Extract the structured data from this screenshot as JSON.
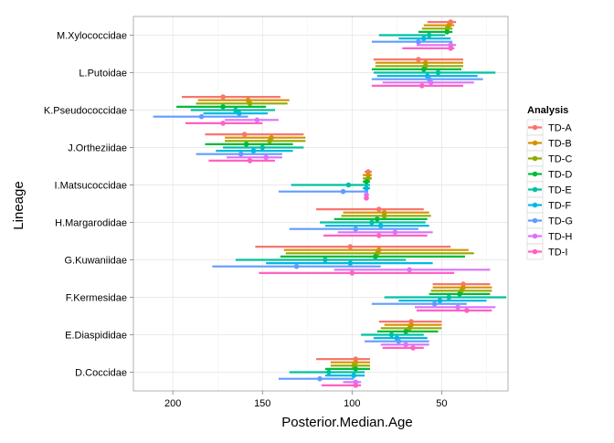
{
  "chart_data": {
    "type": "errorbar",
    "xlabel": "Posterior.Median.Age",
    "ylabel": "Lineage",
    "x_reversed": true,
    "xlim": [
      222,
      13
    ],
    "x_ticks": [
      200,
      150,
      100,
      50
    ],
    "grid": true,
    "legend": {
      "title": "Analysis",
      "position": "right"
    },
    "categories": [
      "D.Coccidae",
      "E.Diaspididae",
      "F.Kermesidae",
      "G.Kuwaniidae",
      "H.Margarodidae",
      "I.Matsucoccidae",
      "J.Ortheziidae",
      "K.Pseudococcidae",
      "L.Putoidae",
      "M.Xylococcidae"
    ],
    "series": [
      {
        "name": "TD-A",
        "color": "#F8766D",
        "points": [
          {
            "category": "D.Coccidae",
            "median": 98,
            "low": 90,
            "high": 120
          },
          {
            "category": "E.Diaspididae",
            "median": 67,
            "low": 50,
            "high": 85
          },
          {
            "category": "F.Kermesidae",
            "median": 38,
            "low": 23,
            "high": 55
          },
          {
            "category": "G.Kuwaniidae",
            "median": 101,
            "low": 45,
            "high": 154
          },
          {
            "category": "H.Margarodidae",
            "median": 85,
            "low": 60,
            "high": 120
          },
          {
            "category": "I.Matsucoccidae",
            "median": 91,
            "low": 89,
            "high": 93
          },
          {
            "category": "J.Ortheziidae",
            "median": 160,
            "low": 127,
            "high": 182
          },
          {
            "category": "K.Pseudococcidae",
            "median": 172,
            "low": 140,
            "high": 195
          },
          {
            "category": "L.Putoidae",
            "median": 63,
            "low": 38,
            "high": 88
          },
          {
            "category": "M.Xylococcidae",
            "median": 45,
            "low": 42,
            "high": 58
          }
        ]
      },
      {
        "name": "TD-B",
        "color": "#D39200",
        "points": [
          {
            "category": "D.Coccidae",
            "median": 98,
            "low": 90,
            "high": 112
          },
          {
            "category": "E.Diaspididae",
            "median": 67,
            "low": 50,
            "high": 82
          },
          {
            "category": "F.Kermesidae",
            "median": 38,
            "low": 22,
            "high": 55
          },
          {
            "category": "G.Kuwaniidae",
            "median": 85,
            "low": 35,
            "high": 138
          },
          {
            "category": "H.Margarodidae",
            "median": 82,
            "low": 57,
            "high": 105
          },
          {
            "category": "I.Matsucoccidae",
            "median": 91,
            "low": 89,
            "high": 94
          },
          {
            "category": "J.Ortheziidae",
            "median": 145,
            "low": 126,
            "high": 171
          },
          {
            "category": "K.Pseudococcidae",
            "median": 158,
            "low": 135,
            "high": 186
          },
          {
            "category": "L.Putoidae",
            "median": 59,
            "low": 38,
            "high": 87
          },
          {
            "category": "M.Xylococcidae",
            "median": 46,
            "low": 43,
            "high": 60
          }
        ]
      },
      {
        "name": "TD-C",
        "color": "#93AA00",
        "points": [
          {
            "category": "D.Coccidae",
            "median": 99,
            "low": 90,
            "high": 112
          },
          {
            "category": "E.Diaspididae",
            "median": 68,
            "low": 50,
            "high": 84
          },
          {
            "category": "F.Kermesidae",
            "median": 39,
            "low": 22,
            "high": 56
          },
          {
            "category": "G.Kuwaniidae",
            "median": 86,
            "low": 32,
            "high": 137
          },
          {
            "category": "H.Margarodidae",
            "median": 82,
            "low": 56,
            "high": 106
          },
          {
            "category": "I.Matsucoccidae",
            "median": 91,
            "low": 89,
            "high": 94
          },
          {
            "category": "J.Ortheziidae",
            "median": 146,
            "low": 126,
            "high": 171
          },
          {
            "category": "K.Pseudococcidae",
            "median": 157,
            "low": 136,
            "high": 187
          },
          {
            "category": "L.Putoidae",
            "median": 59,
            "low": 38,
            "high": 87
          },
          {
            "category": "M.Xylococcidae",
            "median": 47,
            "low": 44,
            "high": 61
          }
        ]
      },
      {
        "name": "TD-D",
        "color": "#00BA38",
        "points": [
          {
            "category": "D.Coccidae",
            "median": 98,
            "low": 90,
            "high": 115
          },
          {
            "category": "E.Diaspididae",
            "median": 70,
            "low": 52,
            "high": 86
          },
          {
            "category": "F.Kermesidae",
            "median": 40,
            "low": 23,
            "high": 57
          },
          {
            "category": "G.Kuwaniidae",
            "median": 87,
            "low": 37,
            "high": 140
          },
          {
            "category": "H.Margarodidae",
            "median": 86,
            "low": 58,
            "high": 110
          },
          {
            "category": "I.Matsucoccidae",
            "median": 92,
            "low": 90,
            "high": 94
          },
          {
            "category": "J.Ortheziidae",
            "median": 159,
            "low": 133,
            "high": 182
          },
          {
            "category": "K.Pseudococcidae",
            "median": 172,
            "low": 148,
            "high": 198
          },
          {
            "category": "L.Putoidae",
            "median": 60,
            "low": 39,
            "high": 89
          },
          {
            "category": "M.Xylococcidae",
            "median": 47,
            "low": 44,
            "high": 63
          }
        ]
      },
      {
        "name": "TD-E",
        "color": "#00C19F",
        "points": [
          {
            "category": "D.Coccidae",
            "median": 113,
            "low": 93,
            "high": 135
          },
          {
            "category": "E.Diaspididae",
            "median": 78,
            "low": 60,
            "high": 95
          },
          {
            "category": "F.Kermesidae",
            "median": 46,
            "low": 14,
            "high": 82
          },
          {
            "category": "G.Kuwaniidae",
            "median": 115,
            "low": 70,
            "high": 165
          },
          {
            "category": "H.Margarodidae",
            "median": 89,
            "low": 59,
            "high": 118
          },
          {
            "category": "I.Matsucoccidae",
            "median": 102,
            "low": 90,
            "high": 134
          },
          {
            "category": "J.Ortheziidae",
            "median": 150,
            "low": 127,
            "high": 172
          },
          {
            "category": "K.Pseudococcidae",
            "median": 165,
            "low": 143,
            "high": 190
          },
          {
            "category": "L.Putoidae",
            "median": 52,
            "low": 20,
            "high": 88
          },
          {
            "category": "M.Xylococcidae",
            "median": 57,
            "low": 48,
            "high": 85
          }
        ]
      },
      {
        "name": "TD-F",
        "color": "#00B9E3",
        "points": [
          {
            "category": "D.Coccidae",
            "median": 99,
            "low": 93,
            "high": 115
          },
          {
            "category": "E.Diaspididae",
            "median": 75,
            "low": 58,
            "high": 88
          },
          {
            "category": "F.Kermesidae",
            "median": 51,
            "low": 25,
            "high": 74
          },
          {
            "category": "G.Kuwaniidae",
            "median": 101,
            "low": 55,
            "high": 148
          },
          {
            "category": "H.Margarodidae",
            "median": 84,
            "low": 57,
            "high": 115
          },
          {
            "category": "I.Matsucoccidae",
            "median": 92,
            "low": 90,
            "high": 94
          },
          {
            "category": "J.Ortheziidae",
            "median": 155,
            "low": 133,
            "high": 176
          },
          {
            "category": "K.Pseudococcidae",
            "median": 163,
            "low": 147,
            "high": 183
          },
          {
            "category": "L.Putoidae",
            "median": 58,
            "low": 30,
            "high": 86
          },
          {
            "category": "M.Xylococcidae",
            "median": 60,
            "low": 45,
            "high": 74
          }
        ]
      },
      {
        "name": "TD-G",
        "color": "#619CFF",
        "points": [
          {
            "category": "D.Coccidae",
            "median": 118,
            "low": 99,
            "high": 141
          },
          {
            "category": "E.Diaspididae",
            "median": 74,
            "low": 57,
            "high": 93
          },
          {
            "category": "F.Kermesidae",
            "median": 54,
            "low": 36,
            "high": 89
          },
          {
            "category": "G.Kuwaniidae",
            "median": 131,
            "low": 84,
            "high": 178
          },
          {
            "category": "H.Margarodidae",
            "median": 98,
            "low": 63,
            "high": 135
          },
          {
            "category": "I.Matsucoccidae",
            "median": 105,
            "low": 91,
            "high": 141
          },
          {
            "category": "J.Ortheziidae",
            "median": 162,
            "low": 139,
            "high": 187
          },
          {
            "category": "K.Pseudococcidae",
            "median": 184,
            "low": 158,
            "high": 211
          },
          {
            "category": "L.Putoidae",
            "median": 57,
            "low": 27,
            "high": 89
          },
          {
            "category": "M.Xylococcidae",
            "median": 63,
            "low": 44,
            "high": 89
          }
        ]
      },
      {
        "name": "TD-H",
        "color": "#DB72FB",
        "points": [
          {
            "category": "D.Coccidae",
            "median": 98,
            "low": 95,
            "high": 105
          },
          {
            "category": "E.Diaspididae",
            "median": 70,
            "low": 57,
            "high": 84
          },
          {
            "category": "F.Kermesidae",
            "median": 41,
            "low": 20,
            "high": 65
          },
          {
            "category": "G.Kuwaniidae",
            "median": 68,
            "low": 23,
            "high": 110
          },
          {
            "category": "H.Margarodidae",
            "median": 76,
            "low": 55,
            "high": 108
          },
          {
            "category": "I.Matsucoccidae",
            "median": 92,
            "low": 91,
            "high": 93
          },
          {
            "category": "J.Ortheziidae",
            "median": 148,
            "low": 139,
            "high": 170
          },
          {
            "category": "K.Pseudococcidae",
            "median": 153,
            "low": 141,
            "high": 171
          },
          {
            "category": "L.Putoidae",
            "median": 56,
            "low": 32,
            "high": 83
          },
          {
            "category": "M.Xylococcidae",
            "median": 45,
            "low": 42,
            "high": 64
          }
        ]
      },
      {
        "name": "TD-I",
        "color": "#FF61C3",
        "points": [
          {
            "category": "D.Coccidae",
            "median": 98,
            "low": 95,
            "high": 117
          },
          {
            "category": "E.Diaspididae",
            "median": 66,
            "low": 60,
            "high": 83
          },
          {
            "category": "F.Kermesidae",
            "median": 36,
            "low": 22,
            "high": 64
          },
          {
            "category": "G.Kuwaniidae",
            "median": 100,
            "low": 43,
            "high": 152
          },
          {
            "category": "H.Margarodidae",
            "median": 85,
            "low": 58,
            "high": 116
          },
          {
            "category": "I.Matsucoccidae",
            "median": 92,
            "low": 91,
            "high": 93
          },
          {
            "category": "J.Ortheziidae",
            "median": 157,
            "low": 143,
            "high": 180
          },
          {
            "category": "K.Pseudococcidae",
            "median": 172,
            "low": 150,
            "high": 193
          },
          {
            "category": "L.Putoidae",
            "median": 61,
            "low": 38,
            "high": 89
          },
          {
            "category": "M.Xylococcidae",
            "median": 45,
            "low": 43,
            "high": 72
          }
        ]
      }
    ]
  }
}
